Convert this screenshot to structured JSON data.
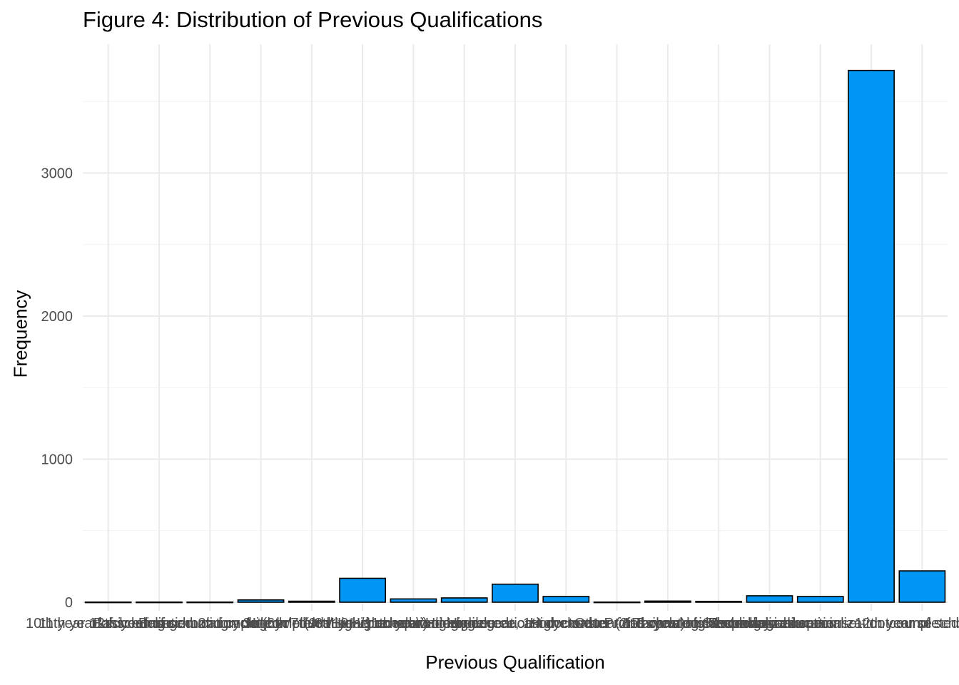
{
  "chart_data": {
    "type": "bar",
    "title": "Figure 4: Distribution of Previous Qualifications",
    "xlabel": "Previous Qualification",
    "ylabel": "Frequency",
    "ylim": [
      -60,
      3900
    ],
    "yticks": [
      0,
      1000,
      2000,
      3000
    ],
    "grid": true,
    "legend": "none",
    "categories": [
      "10th year of schooling",
      "11th year of schooling - not completed",
      "12th year of schooling - not completed",
      "Basic education 2nd cycle (6th/7th/8th year) or equiv.",
      "Basic education 3rd cycle (9th/10th/11th year) or equiv.",
      "Higher education - bachelor's degree",
      "Higher education - degree",
      "Higher education - degree, 1st cycle",
      "Higher education - doctorate",
      "Higher education - master (2nd cycle)",
      "Higher education - master's",
      "Other - 11th year of schooling",
      "Professional higher technical course",
      "Secondary education",
      "Technological specialization course",
      "Secondary education - 12th year of schooling or eq.",
      "Technological specialization course - not completed"
    ],
    "values": [
      1,
      1,
      1,
      16,
      7,
      167,
      23,
      30,
      126,
      40,
      1,
      8,
      6,
      45,
      40,
      3717,
      219
    ],
    "bar_color": "#0096f4",
    "bar_outline": "#000000"
  }
}
